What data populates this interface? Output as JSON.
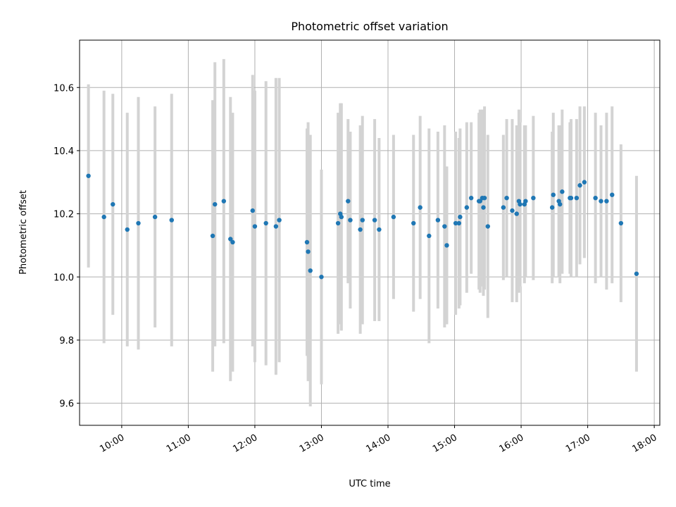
{
  "chart_data": {
    "type": "scatter",
    "title": "Photometric offset variation",
    "xlabel": "UTC time",
    "ylabel": "Photometric offset",
    "xlim": [
      "09:22",
      "18:05"
    ],
    "ylim": [
      9.53,
      10.75
    ],
    "x_ticks": [
      "10:00",
      "11:00",
      "12:00",
      "13:00",
      "14:00",
      "15:00",
      "16:00",
      "17:00",
      "18:00"
    ],
    "y_ticks": [
      "9.6",
      "9.8",
      "10.0",
      "10.2",
      "10.4",
      "10.6"
    ],
    "grid": true,
    "legend": "none",
    "colors": {
      "point": "#1f77b4",
      "errorbar": "#d3d3d3",
      "grid": "#b0b0b0"
    },
    "series": [
      {
        "x": [
          "09:30",
          "09:44",
          "09:52",
          "10:05",
          "10:15",
          "10:30",
          "10:45",
          "11:22",
          "11:24",
          "11:32",
          "11:38",
          "11:40",
          "11:58",
          "12:00",
          "12:10",
          "12:19",
          "12:22",
          "12:47",
          "12:48",
          "12:50",
          "13:00",
          "13:15",
          "13:17",
          "13:18",
          "13:24",
          "13:26",
          "13:35",
          "13:37",
          "13:48",
          "13:52",
          "14:05",
          "14:23",
          "14:29",
          "14:37",
          "14:45",
          "14:51",
          "14:53",
          "15:01",
          "15:04",
          "15:05",
          "15:11",
          "15:15",
          "15:22",
          "15:23",
          "15:25",
          "15:26",
          "15:27",
          "15:30",
          "15:44",
          "15:47",
          "15:52",
          "15:56",
          "15:58",
          "15:59",
          "16:03",
          "16:04",
          "16:11",
          "16:28",
          "16:29",
          "16:34",
          "16:35",
          "16:37",
          "16:44",
          "16:45",
          "16:50",
          "16:53",
          "16:57",
          "17:07",
          "17:12",
          "17:17",
          "17:22",
          "17:30",
          "17:44"
        ],
        "y": [
          10.32,
          10.19,
          10.23,
          10.15,
          10.17,
          10.19,
          10.18,
          10.13,
          10.23,
          10.24,
          10.12,
          10.11,
          10.21,
          10.16,
          10.17,
          10.16,
          10.18,
          10.11,
          10.08,
          10.02,
          10.0,
          10.17,
          10.2,
          10.19,
          10.24,
          10.18,
          10.15,
          10.18,
          10.18,
          10.15,
          10.19,
          10.17,
          10.22,
          10.13,
          10.18,
          10.16,
          10.1,
          10.17,
          10.17,
          10.19,
          10.22,
          10.25,
          10.24,
          10.24,
          10.25,
          10.22,
          10.25,
          10.16,
          10.22,
          10.25,
          10.21,
          10.2,
          10.24,
          10.23,
          10.23,
          10.24,
          10.25,
          10.22,
          10.26,
          10.24,
          10.23,
          10.27,
          10.25,
          10.25,
          10.25,
          10.29,
          10.3,
          10.25,
          10.24,
          10.24,
          10.26,
          10.17,
          10.01
        ],
        "err": [
          0.29,
          0.4,
          0.35,
          0.37,
          0.4,
          0.35,
          0.4,
          0.43,
          0.45,
          0.45,
          0.45,
          0.41,
          0.43,
          0.43,
          0.45,
          0.47,
          0.45,
          0.36,
          0.41,
          0.43,
          0.34,
          0.35,
          0.35,
          0.36,
          0.26,
          0.28,
          0.33,
          0.33,
          0.32,
          0.29,
          0.26,
          0.28,
          0.29,
          0.34,
          0.28,
          0.32,
          0.25,
          0.29,
          0.27,
          0.28,
          0.27,
          0.24,
          0.28,
          0.29,
          0.28,
          0.28,
          0.29,
          0.29,
          0.23,
          0.25,
          0.29,
          0.28,
          0.29,
          0.26,
          0.25,
          0.24,
          0.26,
          0.24,
          0.26,
          0.24,
          0.25,
          0.26,
          0.24,
          0.25,
          0.25,
          0.25,
          0.24,
          0.27,
          0.24,
          0.28,
          0.28,
          0.25,
          0.31
        ]
      }
    ]
  }
}
